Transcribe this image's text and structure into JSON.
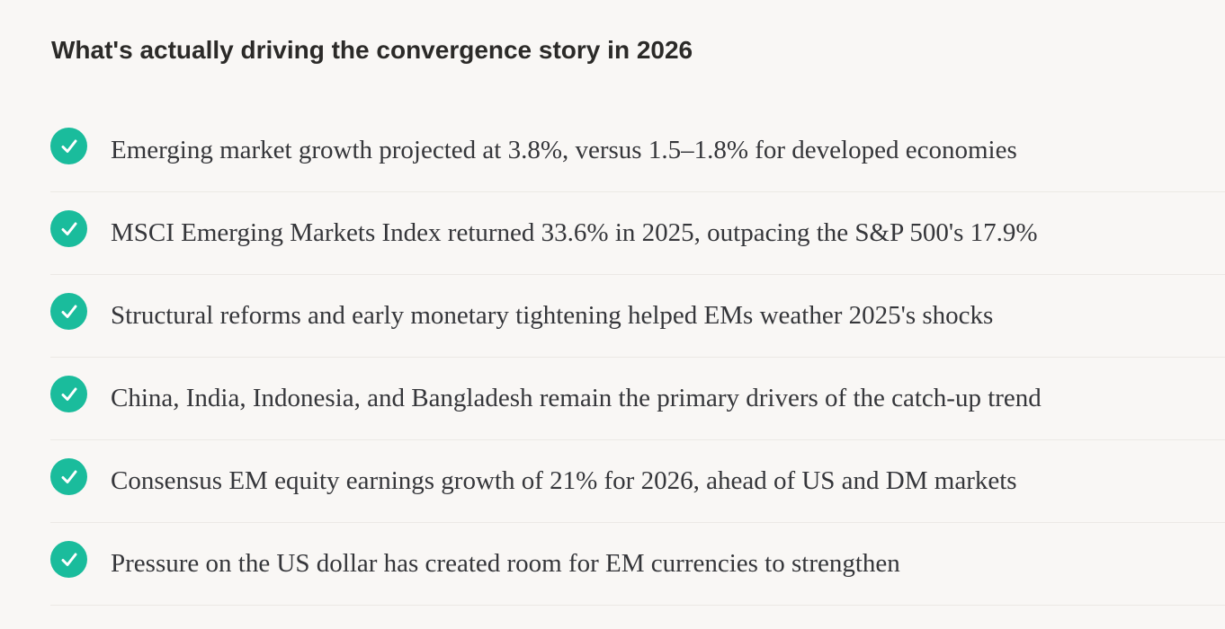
{
  "section": {
    "heading": "What's actually driving the convergence story in 2026"
  },
  "list": {
    "icon": "check-circle-icon",
    "accent_color": "#1abc9c",
    "items": [
      {
        "text": "Emerging market growth projected at 3.8%, versus 1.5–1.8% for developed economies"
      },
      {
        "text": "MSCI Emerging Markets Index returned 33.6% in 2025, outpacing the S&P 500's 17.9%"
      },
      {
        "text": "Structural reforms and early monetary tightening helped EMs weather 2025's shocks"
      },
      {
        "text": "China, India, Indonesia, and Bangladesh remain the primary drivers of the catch-up trend"
      },
      {
        "text": "Consensus EM equity earnings growth of 21% for 2026, ahead of US and DM markets"
      },
      {
        "text": "Pressure on the US dollar has created room for EM currencies to strengthen"
      }
    ]
  }
}
